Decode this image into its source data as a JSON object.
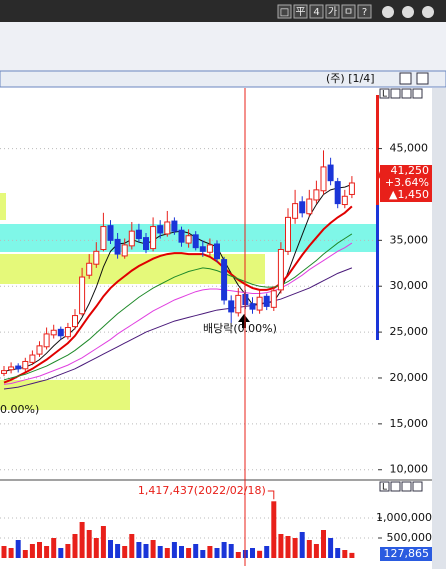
{
  "window": {
    "toolbar": [
      "□",
      "平",
      "4",
      "가",
      "ㅁ",
      "?"
    ],
    "title": "(주) [1/4]",
    "panel_button": "L"
  },
  "chart_data": [
    {
      "type": "candlestick",
      "up_color": "#e8201a",
      "down_color": "#1a35d8",
      "open": [
        20500,
        20900,
        21300,
        21000,
        21700,
        22600,
        23400,
        24700,
        25300,
        24500,
        25600,
        27000,
        31200,
        32400,
        34000,
        36600,
        35100,
        33300,
        34400,
        36100,
        35300,
        34100,
        36600,
        35700,
        37100,
        36100,
        34700,
        35600,
        34300,
        33700,
        34600,
        32900,
        28400,
        27100,
        29100,
        28100,
        27400,
        28900,
        27700,
        29600,
        33800,
        37400,
        39200,
        37900,
        39400,
        40400,
        43200,
        41400,
        38900,
        40000
      ],
      "high": [
        21300,
        21700,
        21600,
        22200,
        23000,
        24000,
        25500,
        25800,
        25600,
        26000,
        27500,
        32000,
        33500,
        34800,
        38000,
        37200,
        35800,
        35200,
        37000,
        36800,
        35800,
        37500,
        37200,
        38200,
        37500,
        36500,
        36200,
        36000,
        35000,
        35200,
        35000,
        33200,
        29000,
        29800,
        29600,
        28800,
        29500,
        29200,
        30000,
        34800,
        38500,
        40500,
        39800,
        40500,
        41500,
        44800,
        44000,
        41800,
        40500,
        42000
      ],
      "low": [
        20200,
        20500,
        20600,
        20700,
        21400,
        22300,
        23100,
        24300,
        24200,
        24200,
        25300,
        26800,
        30800,
        32000,
        33800,
        34600,
        33000,
        33000,
        34000,
        34800,
        33600,
        33800,
        35200,
        35400,
        35600,
        34300,
        34200,
        33900,
        33200,
        33300,
        32600,
        28000,
        26000,
        26700,
        27500,
        27000,
        27000,
        27400,
        27300,
        29200,
        33400,
        36800,
        37500,
        37600,
        39000,
        40000,
        41000,
        38500,
        38500,
        39600
      ],
      "close": [
        20800,
        21200,
        21000,
        21800,
        22500,
        23500,
        24800,
        25200,
        24600,
        25500,
        26800,
        31000,
        32500,
        33800,
        36500,
        35000,
        33500,
        34500,
        36000,
        35200,
        34000,
        36500,
        35800,
        37000,
        36000,
        34800,
        35500,
        34200,
        33800,
        34500,
        33000,
        28500,
        27200,
        29000,
        28000,
        27500,
        28800,
        27800,
        29500,
        34000,
        37500,
        39000,
        38000,
        39500,
        40500,
        43000,
        41500,
        39000,
        39800,
        41250
      ],
      "series": [
        {
          "color": "#111111",
          "values": [
            20700,
            20900,
            21000,
            21200,
            21500,
            22000,
            22700,
            23500,
            24200,
            24700,
            25400,
            26600,
            28100,
            29900,
            32100,
            33800,
            34600,
            34700,
            35100,
            34800,
            34600,
            35000,
            35500,
            35700,
            35900,
            36000,
            35800,
            35300,
            34900,
            34600,
            34300,
            32800,
            31400,
            30100,
            29100,
            28000,
            28100,
            28200,
            28300,
            29500,
            31500,
            33600,
            35600,
            37600,
            38900,
            40000,
            40500,
            40700,
            40800,
            41100
          ]
        },
        {
          "color": "#e00000",
          "values": [
            19500,
            19800,
            20200,
            20600,
            21000,
            21500,
            22000,
            22600,
            23200,
            23800,
            24600,
            25700,
            26800,
            27800,
            28900,
            29800,
            30500,
            31100,
            31700,
            32200,
            32600,
            33000,
            33300,
            33500,
            33600,
            33600,
            33500,
            33500,
            33500,
            33200,
            32700,
            32000,
            31300,
            30700,
            30200,
            29800,
            29600,
            29600,
            29800,
            30300,
            31200,
            32300,
            33400,
            34400,
            35300,
            36200,
            36900,
            37500,
            38000,
            38700
          ]
        },
        {
          "color": "#1f8a2a",
          "values": [
            19800,
            20000,
            20200,
            20400,
            20700,
            21000,
            21300,
            21700,
            22100,
            22500,
            23000,
            23600,
            24200,
            24900,
            25600,
            26300,
            27000,
            27600,
            28200,
            28800,
            29300,
            29800,
            30200,
            30600,
            31000,
            31300,
            31600,
            31800,
            32000,
            31900,
            31700,
            31400,
            31100,
            30800,
            30500,
            30200,
            30000,
            29900,
            29900,
            30100,
            30500,
            31000,
            31600,
            32200,
            32800,
            33500,
            34100,
            34700,
            35200,
            35700
          ]
        },
        {
          "color": "#e040e0",
          "values": [
            19300,
            19400,
            19600,
            19800,
            20000,
            20200,
            20500,
            20800,
            21100,
            21400,
            21800,
            22200,
            22700,
            23200,
            23700,
            24200,
            24800,
            25300,
            25800,
            26300,
            26800,
            27300,
            27700,
            28100,
            28500,
            28800,
            29100,
            29400,
            29600,
            29700,
            29700,
            29600,
            29500,
            29400,
            29300,
            29200,
            29200,
            29300,
            29500,
            29800,
            30200,
            30700,
            31200,
            31800,
            32300,
            32800,
            33300,
            33800,
            34200,
            34700
          ]
        },
        {
          "color": "#4a1a7a",
          "values": [
            18800,
            18900,
            19000,
            19200,
            19400,
            19600,
            19800,
            20100,
            20400,
            20700,
            21000,
            21400,
            21800,
            22200,
            22600,
            23000,
            23400,
            23800,
            24200,
            24600,
            25000,
            25300,
            25600,
            25900,
            26200,
            26400,
            26600,
            26800,
            27000,
            27200,
            27400,
            27500,
            27600,
            27700,
            27800,
            27900,
            28000,
            28200,
            28400,
            28600,
            28900,
            29200,
            29500,
            29800,
            30200,
            30600,
            31000,
            31400,
            31700,
            32000
          ]
        }
      ],
      "ylim": [
        9100,
        51600
      ],
      "yticks": [
        {
          "value": 10000,
          "label": "10,000"
        },
        {
          "value": 15000,
          "label": "15,000"
        },
        {
          "value": 20000,
          "label": "20,000"
        },
        {
          "value": 25000,
          "label": "25,000"
        },
        {
          "value": 30000,
          "label": "30,000"
        },
        {
          "value": 35000,
          "label": "35,000"
        },
        {
          "value": 45000,
          "label": "45,000"
        }
      ],
      "grid": true,
      "annotations": [
        "배당락(0.00%)",
        "0.00%)"
      ],
      "price_tag": [
        "41,250",
        "+3.64%",
        "▲1,450"
      ]
    },
    {
      "type": "bar",
      "values": [
        300000,
        250000,
        450000,
        200000,
        350000,
        400000,
        300000,
        500000,
        250000,
        350000,
        600000,
        900000,
        700000,
        500000,
        800000,
        450000,
        350000,
        300000,
        600000,
        400000,
        350000,
        450000,
        300000,
        250000,
        400000,
        300000,
        250000,
        350000,
        200000,
        300000,
        250000,
        400000,
        350000,
        150000,
        200000,
        250000,
        180000,
        300000,
        1417437,
        600000,
        550000,
        500000,
        650000,
        450000,
        350000,
        700000,
        500000,
        250000,
        200000,
        127865
      ],
      "ylim": [
        0,
        1700000
      ],
      "yticks": [
        {
          "value": 500000,
          "label": "500,000"
        },
        {
          "value": 1000000,
          "label": "1,000,000"
        }
      ],
      "grid": true,
      "annotation": "1,417,437(2022/02/18)",
      "last_label": "127,865"
    }
  ]
}
